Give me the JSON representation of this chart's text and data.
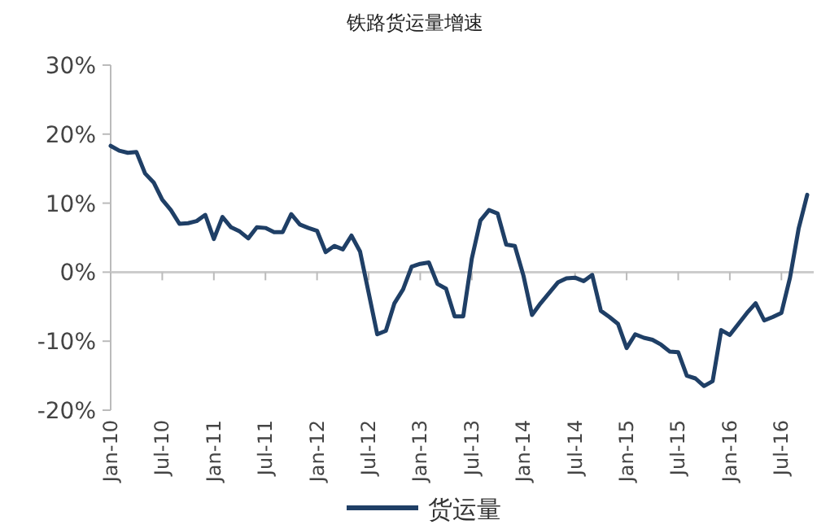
{
  "chart_data": {
    "type": "line",
    "title": "铁路货运量增速",
    "categories": [
      "Jan-10",
      null,
      null,
      null,
      null,
      null,
      "Jul-10",
      null,
      null,
      null,
      null,
      null,
      "Jan-11",
      null,
      null,
      null,
      null,
      null,
      "Jul-11",
      null,
      null,
      null,
      null,
      null,
      "Jan-12",
      null,
      null,
      null,
      null,
      null,
      "Jul-12",
      null,
      null,
      null,
      null,
      null,
      "Jan-13",
      null,
      null,
      null,
      null,
      null,
      "Jul-13",
      null,
      null,
      null,
      null,
      null,
      "Jan-14",
      null,
      null,
      null,
      null,
      null,
      "Jul-14",
      null,
      null,
      null,
      null,
      null,
      "Jan-15",
      null,
      null,
      null,
      null,
      null,
      "Jul-15",
      null,
      null,
      null,
      null,
      null,
      "Jan-16",
      null,
      null,
      null,
      null,
      null,
      "Jul-16",
      null,
      null,
      null
    ],
    "series": [
      {
        "name": "货运量",
        "color": "#1f3f66",
        "values": [
          18.3,
          17.6,
          17.3,
          17.4,
          14.3,
          13,
          10.5,
          9,
          7,
          7.1,
          7.4,
          8.3,
          4.8,
          8,
          6.5,
          5.9,
          4.9,
          6.5,
          6.4,
          5.8,
          5.8,
          8.4,
          6.9,
          6.4,
          6,
          2.9,
          3.8,
          3.3,
          5.3,
          3,
          -3,
          -9,
          -8.5,
          -4.5,
          -2.5,
          0.8,
          1.2,
          1.4,
          -1.7,
          -2.4,
          -6.4,
          -6.4,
          2,
          7.5,
          9,
          8.5,
          4,
          3.8,
          -0.5,
          -6.2,
          -4.5,
          -3,
          -1.5,
          -0.9,
          -0.8,
          -1.3,
          -0.4,
          -5.6,
          -6.5,
          -7.5,
          -11,
          -9,
          -9.5,
          -9.8,
          -10.5,
          -11.5,
          -11.6,
          -15,
          -15.4,
          -16.5,
          -15.8,
          -8.4,
          -9.1,
          -7.5,
          -5.9,
          -4.5,
          -7,
          -6.5,
          -5.9,
          -0.8,
          6.3,
          11.2
        ]
      }
    ],
    "ylim": [
      -20,
      30
    ],
    "yticks": [
      {
        "value": -20,
        "label": "-20%"
      },
      {
        "value": -10,
        "label": "-10%"
      },
      {
        "value": 0,
        "label": "0%"
      },
      {
        "value": 10,
        "label": "10%"
      },
      {
        "value": 20,
        "label": "20%"
      },
      {
        "value": 30,
        "label": "30%"
      }
    ],
    "legend": "bottom"
  }
}
